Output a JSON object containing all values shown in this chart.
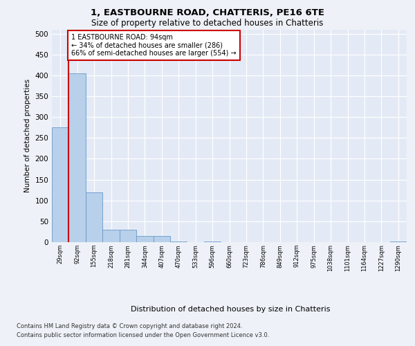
{
  "title1": "1, EASTBOURNE ROAD, CHATTERIS, PE16 6TE",
  "title2": "Size of property relative to detached houses in Chatteris",
  "xlabel": "Distribution of detached houses by size in Chatteris",
  "ylabel": "Number of detached properties",
  "bins": [
    "29sqm",
    "92sqm",
    "155sqm",
    "218sqm",
    "281sqm",
    "344sqm",
    "407sqm",
    "470sqm",
    "533sqm",
    "596sqm",
    "660sqm",
    "723sqm",
    "786sqm",
    "849sqm",
    "912sqm",
    "975sqm",
    "1038sqm",
    "1101sqm",
    "1164sqm",
    "1227sqm",
    "1290sqm"
  ],
  "values": [
    275,
    405,
    120,
    30,
    30,
    15,
    15,
    2,
    0,
    2,
    0,
    0,
    0,
    0,
    0,
    0,
    0,
    0,
    0,
    0,
    2
  ],
  "bar_color": "#b8d0ea",
  "bar_edge_color": "#6699cc",
  "property_line_label": "1 EASTBOURNE ROAD: 94sqm",
  "pct_smaller": 34,
  "n_smaller": 286,
  "pct_larger": 66,
  "n_larger": 554,
  "annotation_box_color": "#cc0000",
  "footer1": "Contains HM Land Registry data © Crown copyright and database right 2024.",
  "footer2": "Contains public sector information licensed under the Open Government Licence v3.0.",
  "bg_color": "#eef2f8",
  "plot_bg_color": "#e4eaf5",
  "grid_color": "#ffffff",
  "ylim": [
    0,
    510
  ],
  "yticks": [
    0,
    50,
    100,
    150,
    200,
    250,
    300,
    350,
    400,
    450,
    500
  ],
  "line_x_index": 0.5,
  "fig_width": 6.0,
  "fig_height": 5.0
}
